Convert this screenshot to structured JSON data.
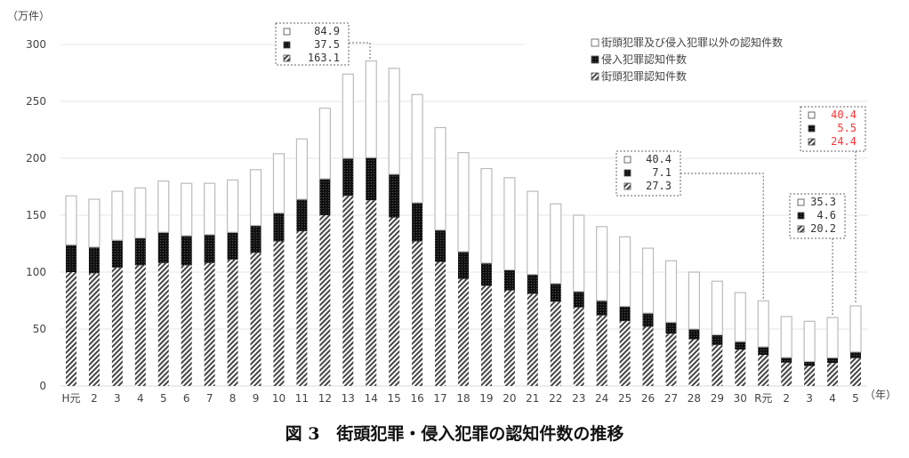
{
  "chart_data": {
    "type": "bar",
    "stacked": true,
    "title": "図 3　街頭犯罪・侵入犯罪の認知件数の推移",
    "ylabel": "（万件）",
    "xlabel": "（年）",
    "ylim": [
      0,
      300
    ],
    "yticks": [
      0,
      50,
      100,
      150,
      200,
      250,
      300
    ],
    "grid": true,
    "legend_placement": "top-right",
    "categories": [
      "H元",
      "2",
      "3",
      "4",
      "5",
      "6",
      "7",
      "8",
      "9",
      "10",
      "11",
      "12",
      "13",
      "14",
      "15",
      "16",
      "17",
      "18",
      "19",
      "20",
      "21",
      "22",
      "23",
      "24",
      "25",
      "26",
      "27",
      "28",
      "29",
      "30",
      "R元",
      "2",
      "3",
      "4",
      "5"
    ],
    "series": [
      {
        "name": "街頭犯罪認知件数",
        "pattern": "hatched",
        "values": [
          100,
          99,
          104,
          106,
          108,
          106,
          108,
          111,
          117,
          127,
          136,
          150,
          167,
          163.1,
          148,
          127,
          109,
          94,
          88,
          84,
          81,
          74,
          69,
          62,
          57,
          52,
          46,
          41,
          36,
          32,
          27.3,
          20.5,
          17.5,
          20.2,
          24.4
        ]
      },
      {
        "name": "侵入犯罪認知件数",
        "pattern": "solid-black",
        "values": [
          24,
          23,
          24,
          24,
          27,
          26,
          25,
          24,
          24,
          25,
          28,
          32,
          33,
          37.5,
          38,
          34,
          28,
          24,
          20,
          18,
          17,
          16,
          14,
          13,
          13,
          12,
          10,
          9,
          9,
          7,
          7.1,
          4.5,
          4,
          4.6,
          5.5
        ]
      },
      {
        "name": "街頭犯罪及び侵入犯罪以外の認知件数",
        "pattern": "white",
        "values": [
          43,
          42,
          43,
          44,
          45,
          46,
          45,
          46,
          49,
          52,
          53,
          62,
          74,
          84.9,
          93,
          95,
          90,
          87,
          83,
          81,
          73,
          70,
          67,
          65,
          61,
          57,
          54,
          50,
          47,
          43,
          40.4,
          36,
          35.3,
          35.3,
          40.4
        ]
      }
    ],
    "legend": [
      "街頭犯罪及び侵入犯罪以外の認知件数",
      "侵入犯罪認知件数",
      "街頭犯罪認知件数"
    ],
    "annotations": [
      {
        "category_index": 13,
        "values": [
          "84.9",
          "37.5",
          "163.1"
        ],
        "color": "#333333"
      },
      {
        "category_index": 30,
        "values": [
          "40.4",
          "7.1",
          "27.3"
        ],
        "color": "#333333"
      },
      {
        "category_index": 33,
        "values": [
          "35.3",
          "4.6",
          "20.2"
        ],
        "color": "#333333"
      },
      {
        "category_index": 34,
        "values": [
          "40.4",
          "5.5",
          "24.4"
        ],
        "color": "#ff3333"
      }
    ]
  }
}
